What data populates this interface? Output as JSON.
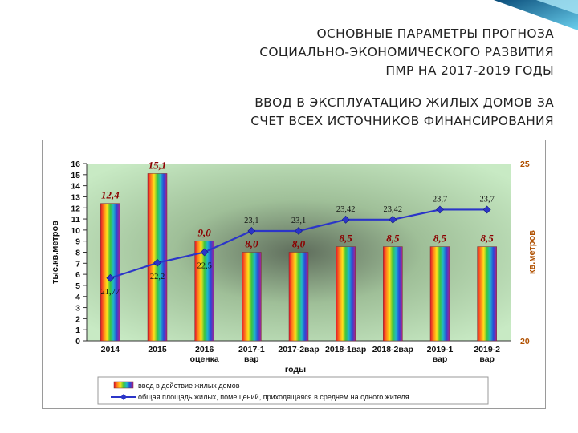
{
  "slide": {
    "title_lines": [
      "ОСНОВНЫЕ ПАРАМЕТРЫ ПРОГНОЗА",
      "СОЦИАЛЬНО-ЭКОНОМИЧЕСКОГО РАЗВИТИЯ",
      "ПМР НА 2017-2019 ГОДЫ"
    ],
    "subtitle_lines": [
      "ВВОД В ЭКСПЛУАТАЦИЮ ЖИЛЫХ ДОМОВ ЗА",
      "СЧЕТ ВСЕХ ИСТОЧНИКОВ ФИНАНСИРОВАНИЯ"
    ]
  },
  "chart_data": {
    "type": "bar+line",
    "categories": [
      [
        "2014"
      ],
      [
        "2015"
      ],
      [
        "2016",
        "оценка"
      ],
      [
        "2017-1",
        "вар"
      ],
      [
        "2017-2вар"
      ],
      [
        "2018-1вар"
      ],
      [
        "2018-2вар"
      ],
      [
        "2019-1",
        "вар"
      ],
      [
        "2019-2",
        "вар"
      ]
    ],
    "xlabel": "годы",
    "y_left": {
      "label": "тыс.кв.метров",
      "min": 0,
      "max": 16,
      "ticks": [
        0,
        1,
        2,
        3,
        4,
        5,
        6,
        7,
        8,
        9,
        10,
        11,
        12,
        13,
        14,
        15,
        16
      ]
    },
    "y_right": {
      "label": "кв.метров",
      "min": 20,
      "max": 25,
      "ticks": [
        "20",
        "25"
      ]
    },
    "series": [
      {
        "name": "ввод в действие жилых домов",
        "kind": "bar",
        "axis": "left",
        "values": [
          12.4,
          15.1,
          9.0,
          8.0,
          8.0,
          8.5,
          8.5,
          8.5,
          8.5
        ],
        "labels": [
          "12,4",
          "15,1",
          "9,0",
          "8,0",
          "8,0",
          "8,5",
          "8,5",
          "8,5",
          "8,5"
        ]
      },
      {
        "name": "общая площадь жилых, помещений, приходящаяся в среднем на одного жителя",
        "kind": "line",
        "axis": "right",
        "values": [
          21.77,
          22.2,
          22.5,
          23.1,
          23.1,
          23.42,
          23.42,
          23.7,
          23.7
        ],
        "labels": [
          "21,77",
          "22,2",
          "22,5",
          "23,1",
          "23,1",
          "23,42",
          "23,42",
          "23,7",
          "23,7"
        ]
      }
    ],
    "colors": {
      "line": "#2b35c8",
      "bar_label": "#8b0000",
      "line_label": "#111111",
      "right_axis_text": "#b05000",
      "plot_bg": "#c8eac4"
    },
    "legend_position": "bottom"
  }
}
